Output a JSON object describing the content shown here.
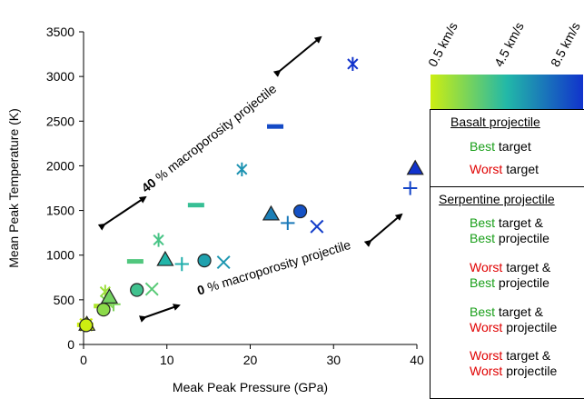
{
  "chart_data": {
    "type": "scatter",
    "xlabel": "Meak Peak Pressure (GPa)",
    "ylabel": "Mean Peak Temperature (K)",
    "xlim": [
      0,
      40
    ],
    "ylim": [
      0,
      3500
    ],
    "xticks": [
      "0",
      "10",
      "20",
      "30",
      "40"
    ],
    "yticks": [
      "0",
      "500",
      "1000",
      "1500",
      "2000",
      "2500",
      "3000",
      "3500"
    ],
    "grid": false,
    "colorbar": {
      "labels": [
        "0.5 km/s",
        "4.5 km/s",
        "8.5 km/s"
      ],
      "range": [
        0.5,
        8.5
      ],
      "colors": [
        "#ccee11",
        "#22b8a8",
        "#1133cc"
      ]
    },
    "annotations": [
      {
        "bold": "40",
        "text": " % macroporosity projectile"
      },
      {
        "bold": "0",
        "text": " % macroporosity projectile"
      }
    ],
    "series": [
      {
        "name": "Best target",
        "group": "Basalt projectile",
        "marker": "circle",
        "points": [
          {
            "x": 0.3,
            "y": 215,
            "v": 0.5
          },
          {
            "x": 2.4,
            "y": 390,
            "v": 2.0
          },
          {
            "x": 6.4,
            "y": 610,
            "v": 3.8
          },
          {
            "x": 14.5,
            "y": 940,
            "v": 5.2
          },
          {
            "x": 26.0,
            "y": 1490,
            "v": 7.6
          }
        ]
      },
      {
        "name": "Worst target",
        "group": "Basalt projectile",
        "marker": "triangle",
        "points": [
          {
            "x": 0.4,
            "y": 225,
            "v": 0.5
          },
          {
            "x": 3.1,
            "y": 530,
            "v": 2.6
          },
          {
            "x": 9.8,
            "y": 950,
            "v": 4.6
          },
          {
            "x": 22.5,
            "y": 1460,
            "v": 6.2
          },
          {
            "x": 39.8,
            "y": 1970,
            "v": 8.5
          }
        ]
      },
      {
        "name": "Best target & Best projectile",
        "group": "Serpentine projectile",
        "marker": "x",
        "points": [
          {
            "x": 0.3,
            "y": 220,
            "v": 0.5
          },
          {
            "x": 2.8,
            "y": 480,
            "v": 2.2
          },
          {
            "x": 8.2,
            "y": 620,
            "v": 3.2
          },
          {
            "x": 16.8,
            "y": 920,
            "v": 5.5
          },
          {
            "x": 28.0,
            "y": 1320,
            "v": 8.2
          }
        ]
      },
      {
        "name": "Worst target & Best projectile",
        "group": "Serpentine projectile",
        "marker": "plus",
        "points": [
          {
            "x": 0.2,
            "y": 215,
            "v": 0.5
          },
          {
            "x": 3.6,
            "y": 450,
            "v": 2.4
          },
          {
            "x": 11.8,
            "y": 900,
            "v": 4.8
          },
          {
            "x": 24.5,
            "y": 1360,
            "v": 6.4
          },
          {
            "x": 39.2,
            "y": 1750,
            "v": 8.0
          }
        ]
      },
      {
        "name": "Best target & Worst projectile",
        "group": "Serpentine projectile",
        "marker": "dash",
        "points": [
          {
            "x": 0.2,
            "y": 220,
            "v": 0.5
          },
          {
            "x": 2.2,
            "y": 430,
            "v": 1.2
          },
          {
            "x": 6.2,
            "y": 930,
            "v": 3.4
          },
          {
            "x": 13.5,
            "y": 1560,
            "v": 4.0
          },
          {
            "x": 23.0,
            "y": 2440,
            "v": 7.8
          }
        ]
      },
      {
        "name": "Worst target & Worst projectile",
        "group": "Serpentine projectile",
        "marker": "asterisk",
        "points": [
          {
            "x": 0.3,
            "y": 230,
            "v": 0.5
          },
          {
            "x": 2.6,
            "y": 590,
            "v": 1.6
          },
          {
            "x": 9.0,
            "y": 1170,
            "v": 3.6
          },
          {
            "x": 19.0,
            "y": 1960,
            "v": 5.6
          },
          {
            "x": 32.3,
            "y": 3140,
            "v": 8.5
          }
        ]
      }
    ]
  },
  "legend": {
    "basalt_title": "Basalt projectile",
    "basalt_items": [
      {
        "hl": "Best",
        "hl_color": "green",
        "rest": " target"
      },
      {
        "hl": "Worst",
        "hl_color": "red",
        "rest": " target"
      }
    ],
    "serp_title": "Serpentine projectile",
    "serp_items": [
      {
        "hl1": "Best",
        "c1": "green",
        "mid": " target &",
        "hl2": "Best",
        "c2": "green",
        "rest": " projectile"
      },
      {
        "hl1": "Worst",
        "c1": "red",
        "mid": " target &",
        "hl2": "Best",
        "c2": "green",
        "rest": " projectile"
      },
      {
        "hl1": "Best",
        "c1": "green",
        "mid": " target &",
        "hl2": "Worst",
        "c2": "red",
        "rest": " projectile"
      },
      {
        "hl1": "Worst",
        "c1": "red",
        "mid": " target &",
        "hl2": "Worst",
        "c2": "red",
        "rest": " projectile"
      }
    ]
  }
}
